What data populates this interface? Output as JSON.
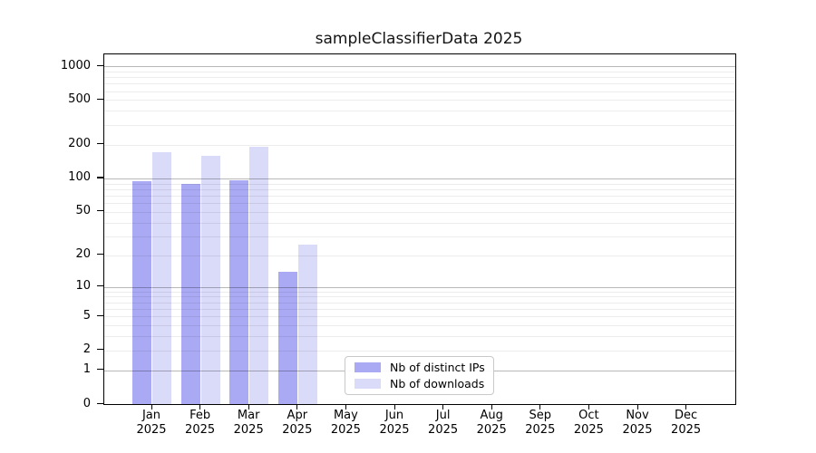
{
  "chart_data": {
    "type": "bar",
    "title": "sampleClassifierData 2025",
    "categories": [
      {
        "line1": "Jan",
        "line2": "2025"
      },
      {
        "line1": "Feb",
        "line2": "2025"
      },
      {
        "line1": "Mar",
        "line2": "2025"
      },
      {
        "line1": "Apr",
        "line2": "2025"
      },
      {
        "line1": "May",
        "line2": "2025"
      },
      {
        "line1": "Jun",
        "line2": "2025"
      },
      {
        "line1": "Jul",
        "line2": "2025"
      },
      {
        "line1": "Aug",
        "line2": "2025"
      },
      {
        "line1": "Sep",
        "line2": "2025"
      },
      {
        "line1": "Oct",
        "line2": "2025"
      },
      {
        "line1": "Nov",
        "line2": "2025"
      },
      {
        "line1": "Dec",
        "line2": "2025"
      }
    ],
    "series": [
      {
        "name": "Nb of distinct IPs",
        "color": "#a9a9f4",
        "values": [
          94,
          90,
          97,
          14,
          0,
          0,
          0,
          0,
          0,
          0,
          0,
          0
        ]
      },
      {
        "name": "Nb of downloads",
        "color": "#dadaf9",
        "values": [
          172,
          158,
          192,
          25,
          0,
          0,
          0,
          0,
          0,
          0,
          0,
          0
        ]
      }
    ],
    "y_ticks": [
      0,
      1,
      2,
      5,
      10,
      20,
      50,
      100,
      200,
      500,
      1000
    ],
    "y_scale": "log10(1+value)",
    "ylim": [
      0,
      1273
    ],
    "xlabel": "",
    "ylabel": "",
    "grid": true,
    "legend_position": "lower-center-inside"
  }
}
